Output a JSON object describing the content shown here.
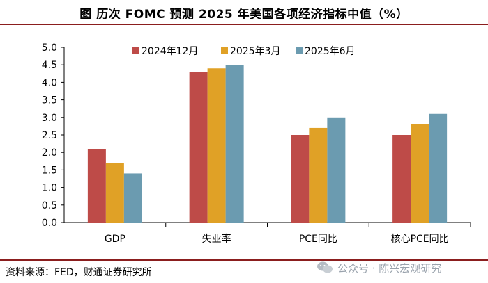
{
  "title": "图  历次 FOMC 预测 2025 年美国各项经济指标中值（%）",
  "source": "资料来源：FED，财通证券研究所",
  "watermark": "公众号 · 陈兴宏观研究",
  "chart_data": {
    "type": "bar",
    "categories": [
      "GDP",
      "失业率",
      "PCE同比",
      "核心PCE同比"
    ],
    "series": [
      {
        "name": "2024年12月",
        "color": "#be4b48",
        "values": [
          2.1,
          4.3,
          2.5,
          2.5
        ]
      },
      {
        "name": "2025年3月",
        "color": "#e0a126",
        "values": [
          1.7,
          4.4,
          2.7,
          2.8
        ]
      },
      {
        "name": "2025年6月",
        "color": "#6b9bb0",
        "values": [
          1.4,
          4.5,
          3.0,
          3.1
        ]
      }
    ],
    "ylim": [
      0,
      5.0
    ],
    "yticks": [
      "0.0",
      "0.5",
      "1.0",
      "1.5",
      "2.0",
      "2.5",
      "3.0",
      "3.5",
      "4.0",
      "4.5",
      "5.0"
    ],
    "xlabel": "",
    "ylabel": "",
    "legend": "top",
    "grid": false
  }
}
